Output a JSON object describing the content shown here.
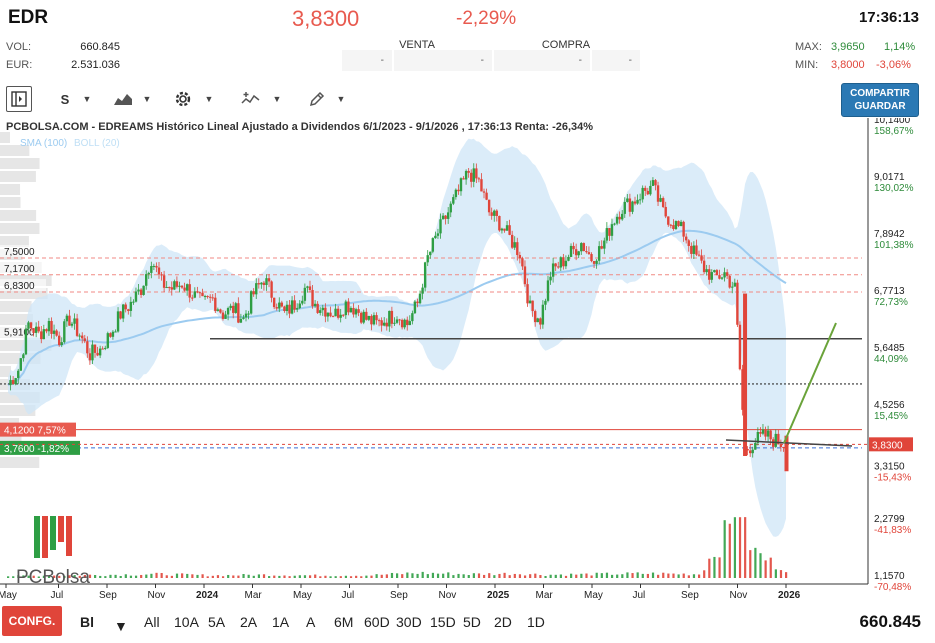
{
  "header": {
    "ticker": "EDR",
    "price": "3,8300",
    "change": "-2,29%",
    "time": "17:36:13"
  },
  "stats": {
    "vol_label": "VOL:",
    "vol_value": "660.845",
    "eur_label": "EUR:",
    "eur_value": "2.531.036",
    "max_label": "MAX:",
    "max_value": "3,9650",
    "max_pct": "1,14%",
    "min_label": "MIN:",
    "min_value": "3,8000",
    "min_pct": "-3,06%"
  },
  "book": {
    "venta_label": "VENTA",
    "compra_label": "COMPRA",
    "cells": [
      "-",
      "-",
      "-",
      "-"
    ]
  },
  "toolbar": {
    "range_label": "S",
    "share_label_1": "COMPARTIR",
    "share_label_2": "GUARDAR"
  },
  "bottom": {
    "config_label": "CONFG.",
    "interval_label": "Bl",
    "periods": [
      "All",
      "10A",
      "5A",
      "2A",
      "1A",
      "A",
      "6M",
      "60D",
      "30D",
      "15D",
      "5D",
      "2D",
      "1D"
    ],
    "volume_total": "660.845"
  },
  "colors": {
    "up": "#2e9e44",
    "down": "#e0453a",
    "band": "#cfe6f7",
    "sma": "#9ccbf0",
    "accent": "#2b79b4"
  },
  "chart_data": {
    "type": "candlestick",
    "title": "PCBOLSA.COM - EDREAMS Histórico Lineal Ajustado a Dividendos 6/1/2023 - 9/1/2026 , 17:36:13 Renta: -26,34%",
    "legend": [
      "SMA (100)",
      "BOLL (20)"
    ],
    "watermark": "PCBolsa",
    "x_tick_labels": [
      "May",
      "Jul",
      "Sep",
      "Nov",
      "2024",
      "Mar",
      "May",
      "Jul",
      "Sep",
      "Nov",
      "2025",
      "Mar",
      "May",
      "Jul",
      "Sep",
      "Nov",
      "2026"
    ],
    "y_axis_right": [
      {
        "value": "10,1400",
        "pct": "158,67%"
      },
      {
        "value": "9,0171",
        "pct": "130,02%"
      },
      {
        "value": "7,8942",
        "pct": "101,38%"
      },
      {
        "value": "6,7713",
        "pct": "72,73%"
      },
      {
        "value": "5,6485",
        "pct": "44,09%"
      },
      {
        "value": "4,5256",
        "pct": "15,45%"
      },
      {
        "value": "3,3150",
        "pct": "-15,43%"
      },
      {
        "value": "2,2799",
        "pct": "-41,83%"
      },
      {
        "value": "1,1570",
        "pct": "-70,48%"
      }
    ],
    "level_labels_left": [
      "7,5000",
      "7,1700",
      "6,8300",
      "5,9100"
    ],
    "level_values": [
      7.5,
      7.17,
      6.83,
      5.91
    ],
    "current_price_label": "3,8300",
    "current_price": 3.83,
    "marker_red": {
      "label": "4,1200  7,57%",
      "value": 4.12
    },
    "marker_blue": {
      "label": "3,7600  -1,82%",
      "value": 3.76
    },
    "black_dotted_level": 5.02,
    "support_line": [
      [
        3.36,
        3.3
      ]
    ],
    "ylim": [
      1.0,
      10.14
    ],
    "price_path": [
      [
        0,
        5.0
      ],
      [
        4,
        5.3
      ],
      [
        8,
        6.2
      ],
      [
        12,
        6.0
      ],
      [
        16,
        6.2
      ],
      [
        20,
        5.9
      ],
      [
        24,
        6.3
      ],
      [
        28,
        6.0
      ],
      [
        32,
        5.6
      ],
      [
        36,
        5.7
      ],
      [
        40,
        6.0
      ],
      [
        44,
        6.4
      ],
      [
        48,
        6.6
      ],
      [
        52,
        6.9
      ],
      [
        56,
        7.5
      ],
      [
        60,
        7.0
      ],
      [
        64,
        6.9
      ],
      [
        68,
        7.0
      ],
      [
        72,
        6.8
      ],
      [
        76,
        6.6
      ],
      [
        80,
        6.7
      ],
      [
        84,
        6.4
      ],
      [
        88,
        6.5
      ],
      [
        92,
        6.3
      ],
      [
        96,
        6.8
      ],
      [
        100,
        7.1
      ],
      [
        104,
        6.7
      ],
      [
        108,
        6.4
      ],
      [
        112,
        6.6
      ],
      [
        116,
        6.9
      ],
      [
        120,
        6.6
      ],
      [
        124,
        6.5
      ],
      [
        128,
        6.4
      ],
      [
        132,
        6.6
      ],
      [
        136,
        6.5
      ],
      [
        140,
        6.3
      ],
      [
        144,
        6.2
      ],
      [
        148,
        6.3
      ],
      [
        152,
        6.4
      ],
      [
        156,
        6.2
      ],
      [
        160,
        6.6
      ],
      [
        164,
        7.5
      ],
      [
        168,
        8.0
      ],
      [
        172,
        8.4
      ],
      [
        176,
        8.8
      ],
      [
        180,
        9.2
      ],
      [
        184,
        9.0
      ],
      [
        188,
        8.4
      ],
      [
        192,
        8.2
      ],
      [
        196,
        7.9
      ],
      [
        200,
        7.6
      ],
      [
        204,
        6.5
      ],
      [
        208,
        6.3
      ],
      [
        212,
        7.2
      ],
      [
        216,
        7.4
      ],
      [
        220,
        7.6
      ],
      [
        224,
        7.8
      ],
      [
        228,
        7.5
      ],
      [
        232,
        7.7
      ],
      [
        236,
        8.2
      ],
      [
        240,
        8.5
      ],
      [
        244,
        8.6
      ],
      [
        248,
        8.8
      ],
      [
        252,
        8.9
      ],
      [
        256,
        8.4
      ],
      [
        260,
        8.2
      ],
      [
        264,
        8.0
      ],
      [
        268,
        7.6
      ],
      [
        272,
        7.3
      ],
      [
        276,
        7.1
      ],
      [
        280,
        7.2
      ],
      [
        284,
        6.9
      ],
      [
        288,
        3.7
      ],
      [
        292,
        3.9
      ],
      [
        296,
        4.0
      ],
      [
        300,
        3.9
      ],
      [
        304,
        3.83
      ]
    ],
    "volume": [
      [
        0,
        0.03
      ],
      [
        20,
        0.04
      ],
      [
        40,
        0.05
      ],
      [
        60,
        0.06
      ],
      [
        80,
        0.04
      ],
      [
        100,
        0.05
      ],
      [
        120,
        0.04
      ],
      [
        140,
        0.04
      ],
      [
        160,
        0.08
      ],
      [
        180,
        0.06
      ],
      [
        200,
        0.07
      ],
      [
        210,
        0.05
      ],
      [
        230,
        0.06
      ],
      [
        250,
        0.07
      ],
      [
        270,
        0.06
      ],
      [
        285,
        0.95
      ],
      [
        288,
        0.7
      ],
      [
        292,
        0.4
      ],
      [
        296,
        0.3
      ],
      [
        300,
        0.2
      ],
      [
        304,
        0.15
      ]
    ]
  }
}
